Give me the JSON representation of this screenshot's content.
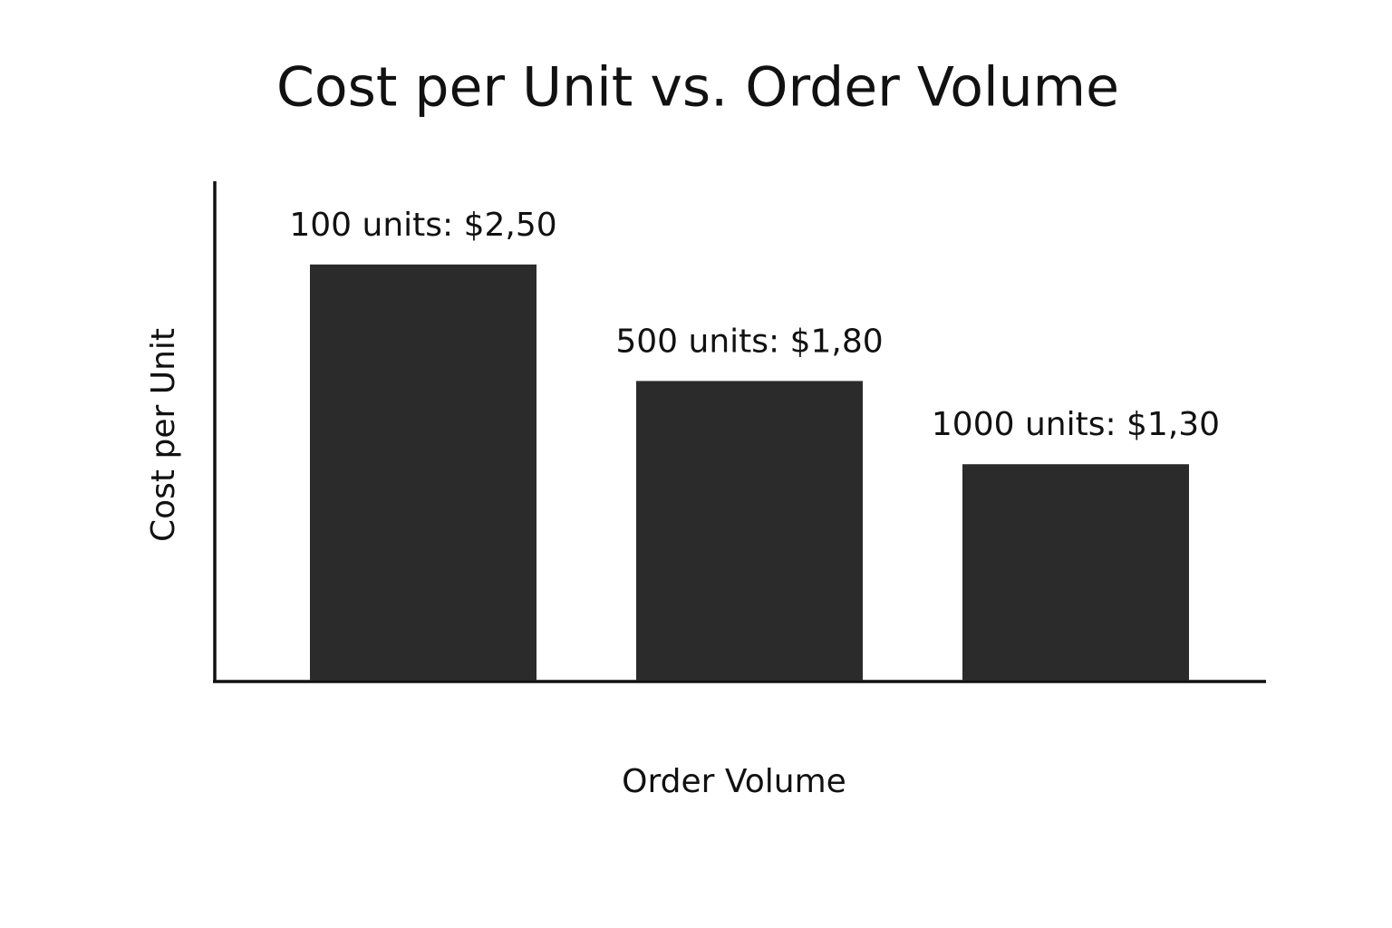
{
  "chart_data": {
    "type": "bar",
    "title": "Cost per Unit vs. Order Volume",
    "x_label": "Order Volume",
    "y_label": "Cost per Unit",
    "categories": [
      null,
      null,
      null
    ],
    "values": [
      2.5,
      1.8,
      1.3
    ],
    "value_labels": [
      "100 units: $2,50",
      "500 units: $1,80",
      "1000 units: $1,30"
    ],
    "color": "#2b2b2b",
    "ylim": [
      0,
      3
    ]
  }
}
